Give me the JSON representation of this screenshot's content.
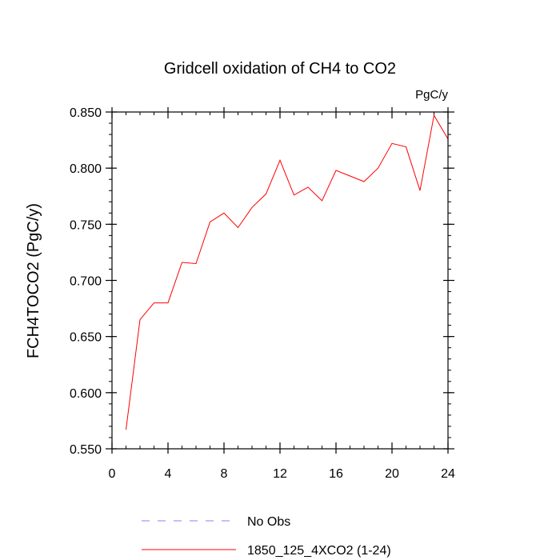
{
  "chart_data": {
    "type": "line",
    "title": "Gridcell oxidation of CH4 to CO2",
    "units_label": "PgC/y",
    "xlabel": "",
    "ylabel": "FCH4TOCO2  (PgC/y)",
    "xlim": [
      0,
      24
    ],
    "ylim": [
      0.55,
      0.85
    ],
    "x_ticks": [
      0,
      4,
      8,
      12,
      16,
      20,
      24
    ],
    "x_tick_labels": [
      "0",
      "4",
      "8",
      "12",
      "16",
      "20",
      "24"
    ],
    "y_ticks": [
      0.55,
      0.6,
      0.65,
      0.7,
      0.75,
      0.8,
      0.85
    ],
    "y_tick_labels": [
      "0.550",
      "0.600",
      "0.650",
      "0.700",
      "0.750",
      "0.800",
      "0.850"
    ],
    "series": [
      {
        "name": "1850_125_4XCO2 (1-24)",
        "color": "#ff0000",
        "x": [
          1,
          2,
          3,
          4,
          5,
          6,
          7,
          8,
          9,
          10,
          11,
          12,
          13,
          14,
          15,
          16,
          17,
          18,
          19,
          20,
          21,
          22,
          23,
          24
        ],
        "values": [
          0.567,
          0.665,
          0.68,
          0.68,
          0.716,
          0.715,
          0.752,
          0.76,
          0.747,
          0.765,
          0.777,
          0.807,
          0.776,
          0.783,
          0.771,
          0.798,
          0.793,
          0.788,
          0.8,
          0.822,
          0.819,
          0.78,
          0.847,
          0.826
        ]
      }
    ],
    "legend": [
      {
        "label": "No Obs",
        "color": "#8080ff",
        "style": "dashed"
      },
      {
        "label": "1850_125_4XCO2 (1-24)",
        "color": "#ff0000",
        "style": "solid"
      }
    ],
    "legend_position": "bottom-center"
  }
}
